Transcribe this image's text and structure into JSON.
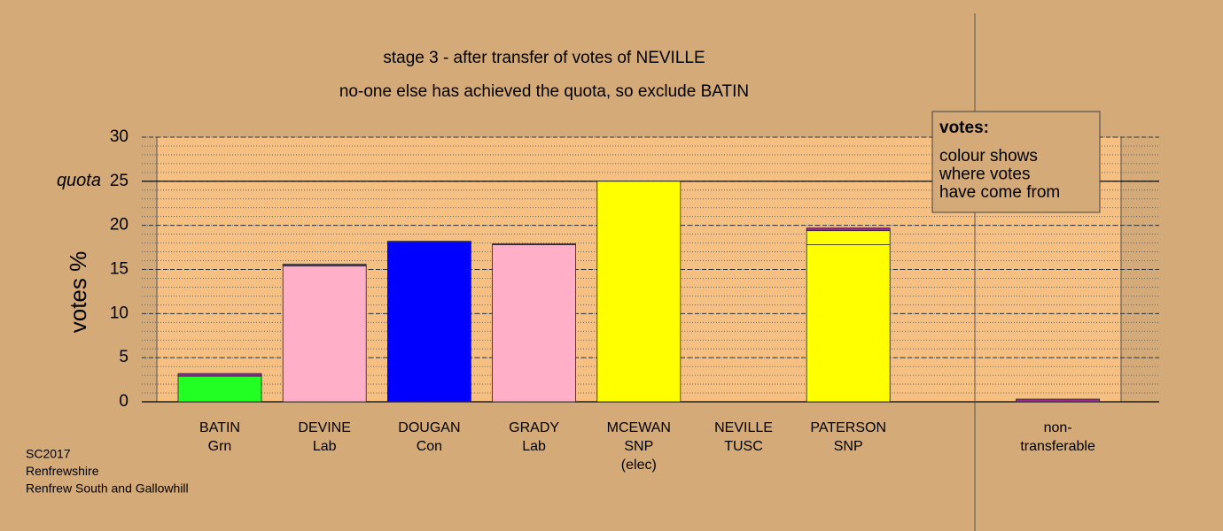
{
  "chart_data": {
    "type": "stacked_bar",
    "title": "stage 3 - after transfer of votes of NEVILLE",
    "subtitle": "no-one else has achieved the quota, so exclude BATIN",
    "y_label": "votes %",
    "categories": [
      [
        "BATIN",
        "Grn"
      ],
      [
        "DEVINE",
        "Lab"
      ],
      [
        "DOUGAN",
        "Con"
      ],
      [
        "GRADY",
        "Lab"
      ],
      [
        "MCEWAN",
        "SNP",
        "(elec)"
      ],
      [
        "NEVILLE",
        "TUSC"
      ],
      [
        "PATERSON",
        "SNP"
      ],
      null,
      [
        "non-",
        "transferable"
      ]
    ],
    "series": [
      {
        "colors": [
          "#22ff22",
          "#ffb0c8",
          "#0000ff",
          "#ffb0c8",
          "#ffff00",
          "#a040a0",
          "#ffff00",
          null,
          "#a040a0"
        ],
        "values": [
          2.9,
          15.4,
          18.1,
          17.8,
          25.0,
          0,
          17.8,
          null,
          0
        ]
      },
      {
        "color": "#ffff00",
        "values": [
          0,
          0,
          0,
          0,
          0,
          0,
          1.6,
          null,
          0
        ]
      },
      {
        "color": "#9a2a9a",
        "values": [
          0.3,
          0.2,
          0.1,
          0.1,
          0,
          0,
          0.3,
          null,
          0.3
        ]
      }
    ],
    "ylim": [
      0,
      30
    ],
    "yticks": [
      0,
      5,
      10,
      15,
      20,
      25,
      30
    ],
    "minor_step": 1,
    "quota": {
      "value": 25,
      "label": "quota"
    },
    "legend": {
      "title": "votes:",
      "lines": [
        "colour shows",
        "where votes",
        "have come from"
      ]
    },
    "footer": [
      "SC2017",
      "Renfrewshire",
      "Renfrew South and Gallowhill"
    ]
  }
}
